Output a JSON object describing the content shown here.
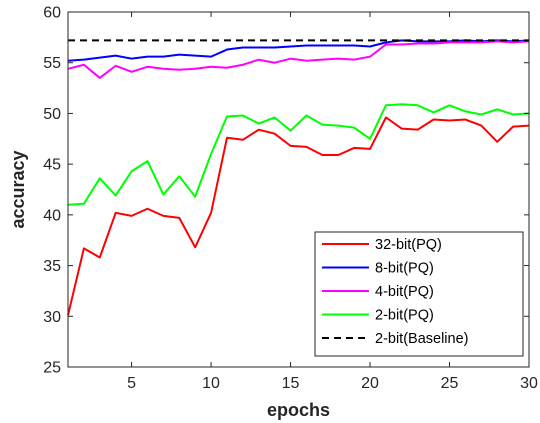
{
  "chart_data": {
    "type": "line",
    "xlabel": "epochs",
    "ylabel": "accuracy",
    "xlim": [
      1,
      30
    ],
    "ylim": [
      25,
      60
    ],
    "xticks": [
      5,
      10,
      15,
      20,
      25,
      30
    ],
    "yticks": [
      25,
      30,
      35,
      40,
      45,
      50,
      55,
      60
    ],
    "grid": false,
    "legend_position": "bottom-right",
    "x": [
      1,
      2,
      3,
      4,
      5,
      6,
      7,
      8,
      9,
      10,
      11,
      12,
      13,
      14,
      15,
      16,
      17,
      18,
      19,
      20,
      21,
      22,
      23,
      24,
      25,
      26,
      27,
      28,
      29,
      30
    ],
    "series": [
      {
        "name": "32-bit(PQ)",
        "color": "#ff0000",
        "dash": "solid",
        "values": [
          30.1,
          36.7,
          35.8,
          40.2,
          39.9,
          40.6,
          39.9,
          39.7,
          36.8,
          40.2,
          47.6,
          47.4,
          48.4,
          48.0,
          46.8,
          46.7,
          45.9,
          45.9,
          46.6,
          46.5,
          49.6,
          48.5,
          48.4,
          49.4,
          49.3,
          49.4,
          48.8,
          47.2,
          48.7,
          48.8
        ]
      },
      {
        "name": "8-bit(PQ)",
        "color": "#0000ff",
        "dash": "solid",
        "values": [
          55.2,
          55.3,
          55.5,
          55.7,
          55.4,
          55.6,
          55.6,
          55.8,
          55.7,
          55.6,
          56.3,
          56.5,
          56.5,
          56.5,
          56.6,
          56.7,
          56.7,
          56.7,
          56.7,
          56.6,
          57.0,
          57.2,
          57.1,
          57.1,
          57.1,
          57.2,
          57.1,
          57.2,
          57.1,
          57.2
        ]
      },
      {
        "name": "4-bit(PQ)",
        "color": "#ff00ff",
        "dash": "solid",
        "values": [
          54.4,
          54.8,
          53.5,
          54.7,
          54.1,
          54.6,
          54.4,
          54.3,
          54.4,
          54.6,
          54.5,
          54.8,
          55.3,
          55.0,
          55.4,
          55.2,
          55.3,
          55.4,
          55.3,
          55.6,
          56.8,
          56.8,
          56.9,
          56.9,
          57.0,
          57.0,
          57.0,
          57.1,
          57.0,
          57.1
        ]
      },
      {
        "name": "2-bit(PQ)",
        "color": "#00ff00",
        "dash": "solid",
        "values": [
          41.0,
          41.1,
          43.6,
          41.9,
          44.3,
          45.3,
          42.0,
          43.8,
          41.8,
          46.0,
          49.7,
          49.8,
          49.0,
          49.6,
          48.3,
          49.8,
          48.9,
          48.8,
          48.6,
          47.5,
          50.8,
          50.9,
          50.8,
          50.1,
          50.8,
          50.2,
          49.9,
          50.4,
          49.9,
          50.0
        ]
      },
      {
        "name": "2-bit(Baseline)",
        "color": "#000000",
        "dash": "dashed",
        "values": [
          57.2,
          57.2,
          57.2,
          57.2,
          57.2,
          57.2,
          57.2,
          57.2,
          57.2,
          57.2,
          57.2,
          57.2,
          57.2,
          57.2,
          57.2,
          57.2,
          57.2,
          57.2,
          57.2,
          57.2,
          57.2,
          57.2,
          57.2,
          57.2,
          57.2,
          57.2,
          57.2,
          57.2,
          57.2,
          57.2
        ]
      }
    ]
  }
}
